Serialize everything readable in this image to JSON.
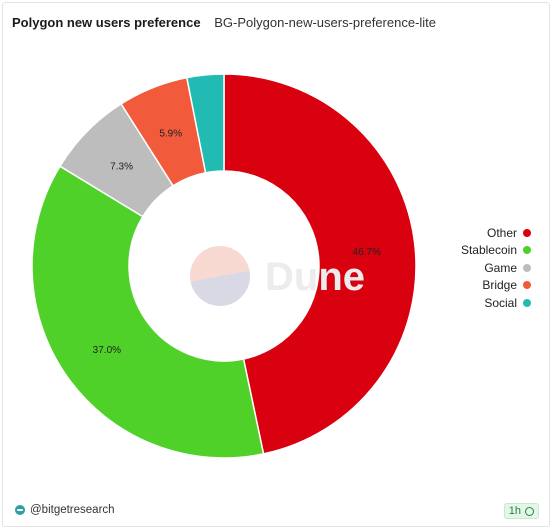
{
  "header": {
    "title": "Polygon new users preference",
    "subtitle": "BG-Polygon-new-users-preference-lite"
  },
  "watermark": {
    "text": "Dune"
  },
  "chart_data": {
    "type": "pie",
    "variant": "donut",
    "categories": [
      "Other",
      "Stablecoin",
      "Game",
      "Bridge",
      "Social"
    ],
    "values": [
      46.7,
      37.0,
      7.3,
      5.9,
      3.1
    ],
    "labels": [
      "46.7%",
      "37.0%",
      "7.3%",
      "5.9%",
      ""
    ],
    "colors": [
      "#d9000f",
      "#4fd12a",
      "#bdbdbd",
      "#f25a3c",
      "#22bbb3"
    ],
    "legend_position": "right"
  },
  "legend": {
    "items": [
      {
        "label": "Other",
        "color": "#d9000f"
      },
      {
        "label": "Stablecoin",
        "color": "#4fd12a"
      },
      {
        "label": "Game",
        "color": "#bdbdbd"
      },
      {
        "label": "Bridge",
        "color": "#f25a3c"
      },
      {
        "label": "Social",
        "color": "#22bbb3"
      }
    ]
  },
  "footer": {
    "author": "@bitgetresearch",
    "refresh": "1h"
  }
}
